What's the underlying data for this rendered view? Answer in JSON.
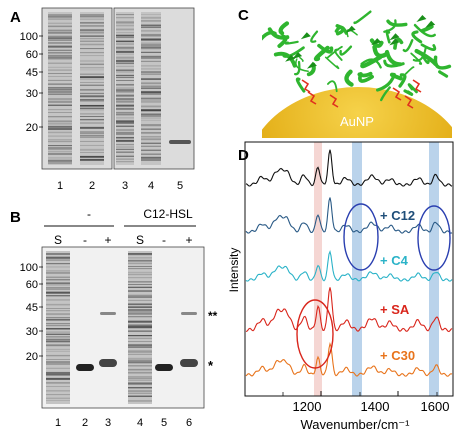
{
  "panel_labels": {
    "a": "A",
    "b": "B",
    "c": "C",
    "d": "D"
  },
  "panel_a": {
    "mw_markers": [
      "100",
      "60",
      "45",
      "30",
      "20"
    ],
    "lane_numbers": [
      "1",
      "2",
      "3",
      "4",
      "5"
    ]
  },
  "panel_b": {
    "condition_none": "-",
    "condition_c12": "C12-HSL",
    "lane_headers": [
      "S",
      "-",
      "+",
      "S",
      "-",
      "+"
    ],
    "mw_markers": [
      "100",
      "60",
      "45",
      "30",
      "20"
    ],
    "lane_numbers": [
      "1",
      "2",
      "3",
      "4",
      "5",
      "6"
    ],
    "band_marks": {
      "double": "**",
      "single": "*"
    }
  },
  "panel_c": {
    "surface_label": "AuNP"
  },
  "panel_d": {
    "y_label": "Intensity",
    "x_label": "Wavenumber/cm⁻¹",
    "x_ticks": [
      "1200",
      "1400",
      "1600"
    ],
    "spectrum_labels": [
      {
        "text": "+ C12",
        "color": "#1f4e79"
      },
      {
        "text": "+ C4",
        "color": "#2bb3c8"
      },
      {
        "text": "+ SA",
        "color": "#d9261c"
      },
      {
        "text": "+ C30",
        "color": "#e8741c"
      }
    ],
    "colors": {
      "control": "#111111",
      "c12": "#2a5a86",
      "c4": "#2bb3c8",
      "sa": "#d9261c",
      "c30": "#e8741c",
      "highlight_red": "#f2c8c4",
      "highlight_blue": "#a9c8e6",
      "ellipse_blue": "#2a3fb0",
      "ellipse_red": "#d9261c"
    }
  },
  "colors": {
    "gold": "#e2ac14",
    "protein": "#2fb52f",
    "ligand": "#e0301e"
  }
}
